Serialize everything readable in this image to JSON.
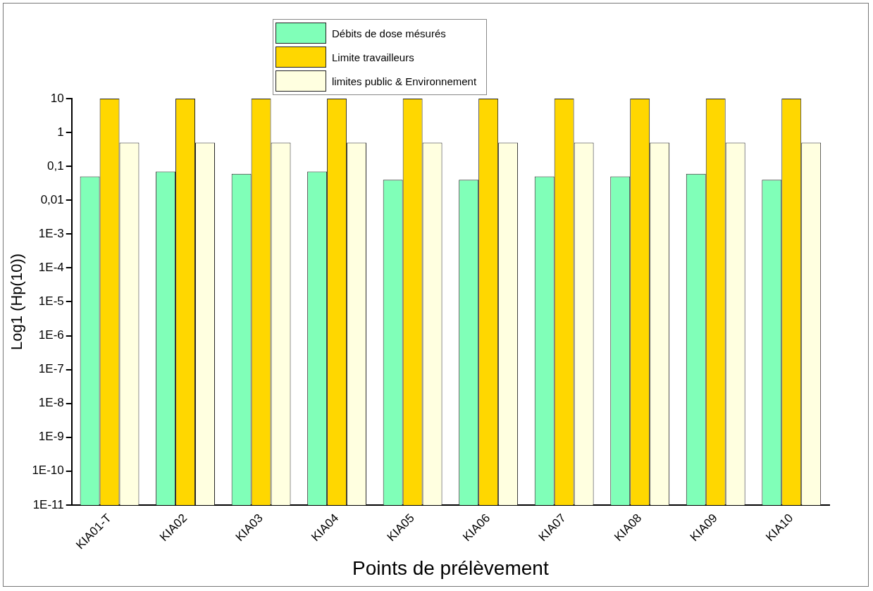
{
  "chart_data": {
    "type": "bar",
    "xlabel": "Points de prélèvement",
    "ylabel": "Log1 (Hp(10))",
    "categories": [
      "KIA01-T",
      "KIA02",
      "KIA03",
      "KIA04",
      "KIA05",
      "KIA06",
      "KIA07",
      "KIA08",
      "KIA09",
      "KIA10"
    ],
    "series": [
      {
        "name": "Débits  de dose mésurés",
        "color": "#80ffb8",
        "values": [
          0.05,
          0.07,
          0.06,
          0.07,
          0.04,
          0.04,
          0.05,
          0.05,
          0.06,
          0.04
        ]
      },
      {
        "name": "Limite travailleurs",
        "color": "#ffd700",
        "values": [
          10,
          10,
          10,
          10,
          10,
          10,
          10,
          10,
          10,
          10
        ]
      },
      {
        "name": "limites public & Environnement",
        "color": "#ffffe0",
        "values": [
          0.5,
          0.5,
          0.5,
          0.5,
          0.5,
          0.5,
          0.5,
          0.5,
          0.5,
          0.5
        ]
      }
    ],
    "log": "y",
    "ylim": [
      1e-11,
      10
    ],
    "yticks": [
      {
        "value": 1e-11,
        "label": "1E-11"
      },
      {
        "value": 1e-10,
        "label": "1E-10"
      },
      {
        "value": 1e-09,
        "label": "1E-9"
      },
      {
        "value": 1e-08,
        "label": "1E-8"
      },
      {
        "value": 1e-07,
        "label": "1E-7"
      },
      {
        "value": 1e-06,
        "label": "1E-6"
      },
      {
        "value": 1e-05,
        "label": "1E-5"
      },
      {
        "value": 0.0001,
        "label": "1E-4"
      },
      {
        "value": 0.001,
        "label": "1E-3"
      },
      {
        "value": 0.01,
        "label": "0,01"
      },
      {
        "value": 0.1,
        "label": "0,1"
      },
      1,
      10
    ],
    "grid": false,
    "legend": "top"
  }
}
